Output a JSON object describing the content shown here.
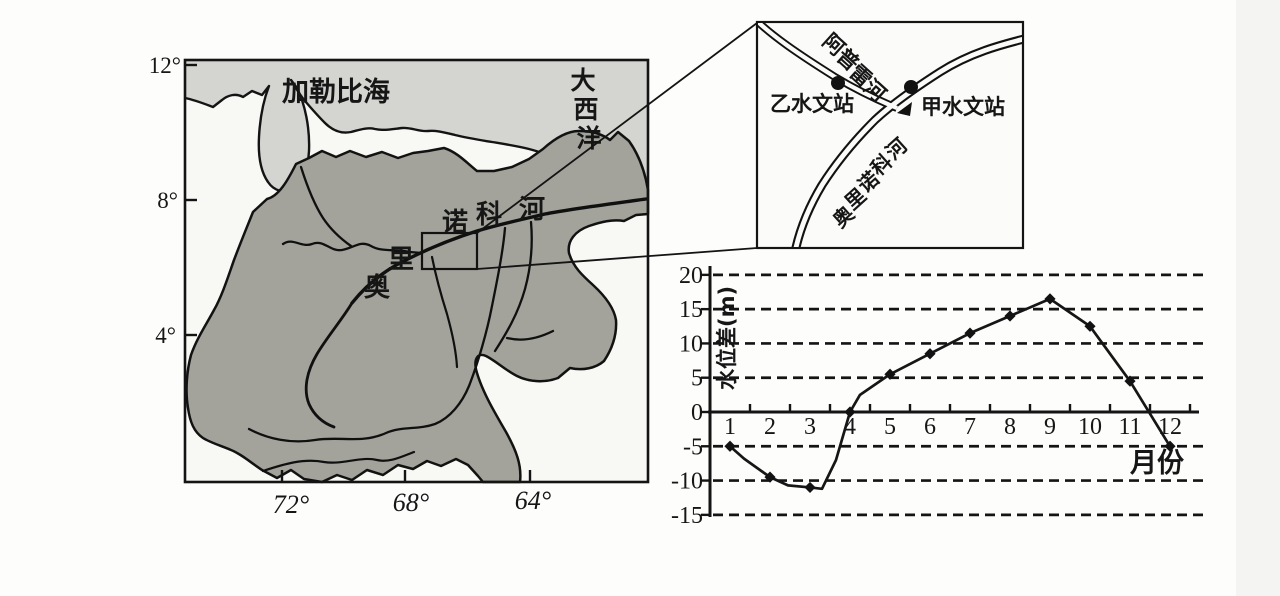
{
  "main_map": {
    "caribbean_sea": "加勒比海",
    "atlantic_chars": [
      "大",
      "西",
      "洋"
    ],
    "orinoco_river_chars": [
      "奥",
      "里",
      "诺",
      "科",
      "河"
    ],
    "latitude_labels": [
      "12°",
      "8°",
      "4°"
    ],
    "longitude_labels": [
      "72°",
      "68°",
      "64°"
    ]
  },
  "inset_map": {
    "apure_river_chars": [
      "阿",
      "普",
      "雷",
      "河"
    ],
    "orinoco_river_chars": [
      "奥",
      "里",
      "诺",
      "科",
      "河"
    ],
    "station_yi": "乙水文站",
    "station_jia": "甲水文站"
  },
  "chart_data": {
    "type": "line",
    "x": [
      1,
      2,
      3,
      4,
      5,
      6,
      7,
      8,
      9,
      10,
      11,
      12
    ],
    "values": [
      -5,
      -9.5,
      -11,
      0,
      5.5,
      8.5,
      11.5,
      14,
      16.5,
      12.5,
      4.5,
      -5
    ],
    "xlabel": "月份",
    "ylabel": "水位差(m)",
    "y_ticks": [
      20,
      15,
      10,
      5,
      0,
      -5,
      -10,
      -15
    ],
    "ylim": [
      -15,
      20
    ],
    "xlim": [
      1,
      12
    ],
    "grid": "horizontal-dashed",
    "legend": "none",
    "marker": "diamond",
    "line_color": "#161616"
  }
}
